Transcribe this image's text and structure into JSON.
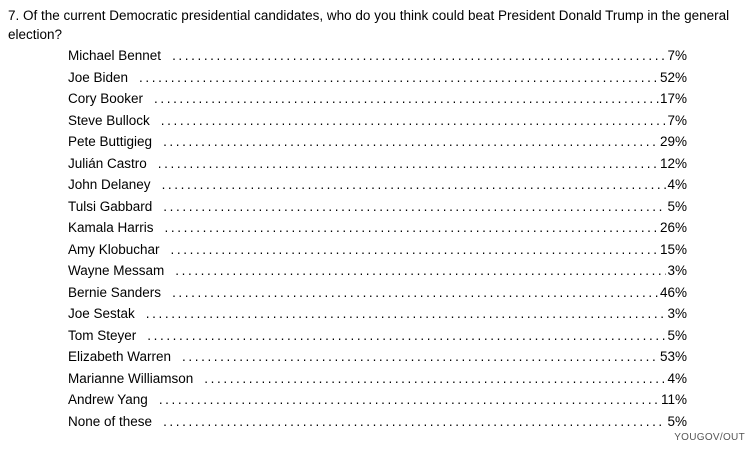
{
  "question": {
    "text": "7. Of the current Democratic presidential candidates, who do you think could beat President Donald Trump in the general election?"
  },
  "results": [
    {
      "label": "Michael Bennet",
      "value": "7%"
    },
    {
      "label": "Joe Biden",
      "value": "52%"
    },
    {
      "label": "Cory Booker",
      "value": "17%"
    },
    {
      "label": "Steve Bullock",
      "value": "7%"
    },
    {
      "label": "Pete Buttigieg",
      "value": "29%"
    },
    {
      "label": "Julián Castro",
      "value": "12%"
    },
    {
      "label": "John Delaney",
      "value": "4%"
    },
    {
      "label": "Tulsi Gabbard",
      "value": "5%"
    },
    {
      "label": "Kamala Harris",
      "value": "26%"
    },
    {
      "label": "Amy Klobuchar",
      "value": "15%"
    },
    {
      "label": "Wayne Messam",
      "value": "3%"
    },
    {
      "label": "Bernie Sanders",
      "value": "46%"
    },
    {
      "label": "Joe Sestak",
      "value": "3%"
    },
    {
      "label": "Tom Steyer",
      "value": "5%"
    },
    {
      "label": "Elizabeth Warren",
      "value": "53%"
    },
    {
      "label": "Marianne Williamson",
      "value": "4%"
    },
    {
      "label": "Andrew Yang",
      "value": "11%"
    },
    {
      "label": "None of these",
      "value": "5%"
    }
  ],
  "footer": {
    "source": "YOUGOV/OUT"
  },
  "colors": {
    "text": "#000000",
    "footer": "#555555",
    "background": "#ffffff"
  }
}
